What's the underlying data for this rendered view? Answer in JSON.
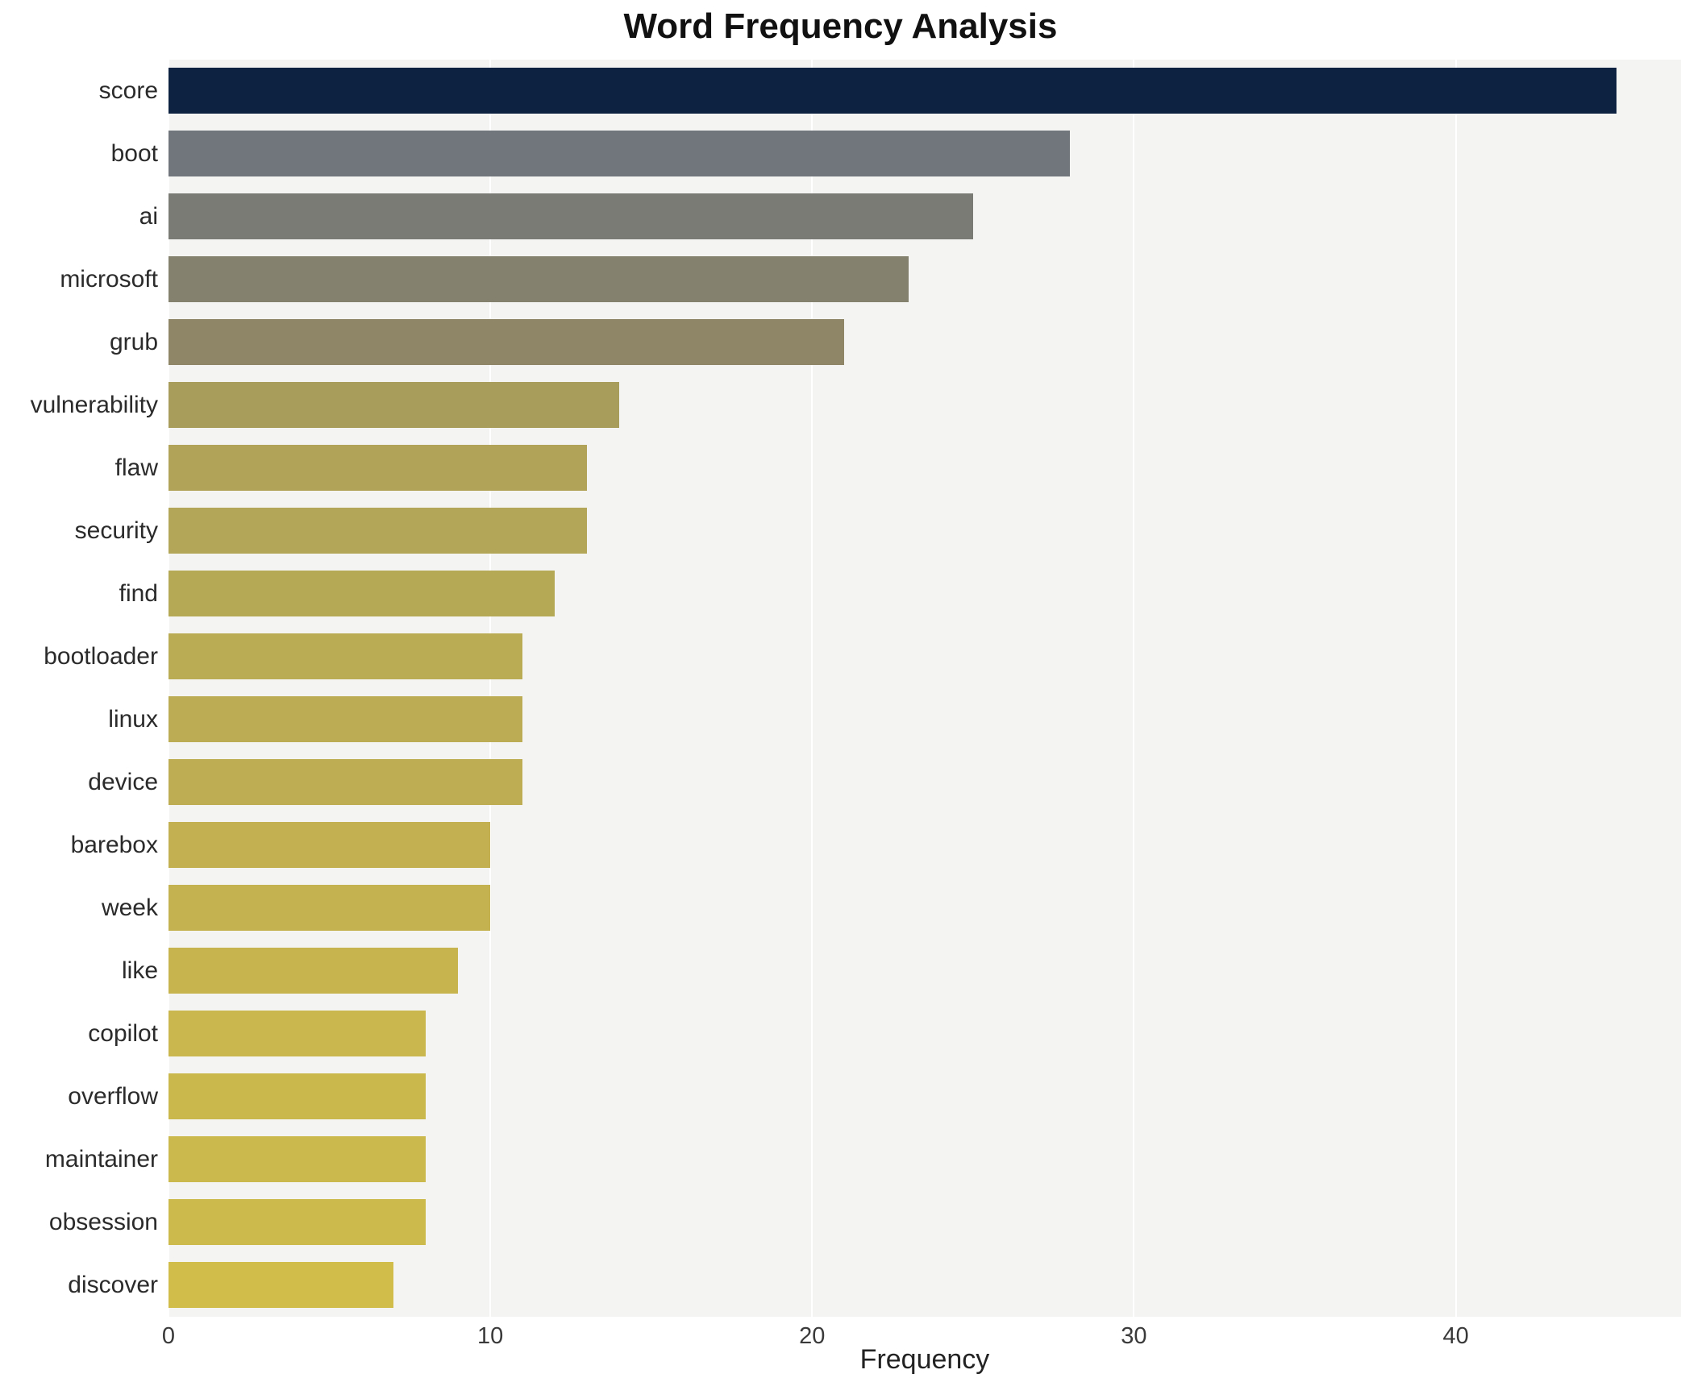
{
  "title": "Word Frequency Analysis",
  "chart_data": {
    "type": "bar",
    "orientation": "horizontal",
    "title": "Word Frequency Analysis",
    "xlabel": "Frequency",
    "ylabel": "",
    "categories": [
      "score",
      "boot",
      "ai",
      "microsoft",
      "grub",
      "vulnerability",
      "flaw",
      "security",
      "find",
      "bootloader",
      "linux",
      "device",
      "barebox",
      "week",
      "like",
      "copilot",
      "overflow",
      "maintainer",
      "obsession",
      "discover"
    ],
    "values": [
      45,
      28,
      25,
      23,
      21,
      14,
      13,
      13,
      12,
      11,
      11,
      11,
      10,
      10,
      9,
      8,
      8,
      8,
      8,
      7
    ],
    "xlim": [
      0,
      47
    ],
    "xticks": [
      0,
      10,
      20,
      30,
      40
    ],
    "grid": true,
    "legend_position": "none",
    "plot_background": "#f4f4f3",
    "grid_color": "#ffffff",
    "bar_colors": [
      "#0d2240",
      "#70767b",
      "#7a7b75",
      "#84816e",
      "#8e8667",
      "#a99d5c",
      "#b1a459",
      "#b3a658",
      "#b6a956",
      "#baab55",
      "#bcad54",
      "#bead53",
      "#c2b051",
      "#c4b251",
      "#c7b44f",
      "#cab74e",
      "#cbb84d",
      "#ccb94d",
      "#cdba4c",
      "#d1bd4a"
    ]
  }
}
